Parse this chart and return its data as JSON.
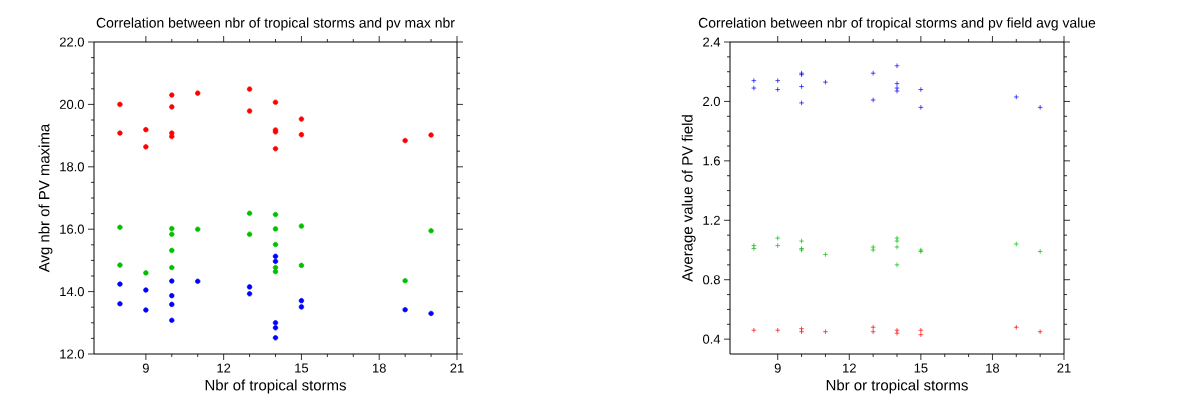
{
  "chart_data": [
    {
      "type": "scatter",
      "title": "Correlation between nbr of tropical storms and pv max nbr",
      "xlabel": "Nbr of tropical storms",
      "ylabel": "Avg nbr of PV maxima",
      "xlim": [
        7,
        21
      ],
      "ylim": [
        12,
        22
      ],
      "xticks": [
        9,
        12,
        15,
        18,
        21
      ],
      "yticks": [
        {
          "value": 12,
          "label": "12.0"
        },
        {
          "value": 14,
          "label": "14.0"
        },
        {
          "value": 16,
          "label": "16.0"
        },
        {
          "value": 18,
          "label": "18.0"
        },
        {
          "value": 20,
          "label": "20.0"
        },
        {
          "value": 22,
          "label": "22.0"
        }
      ],
      "marker": "circle",
      "series": [
        {
          "color": "#ff0000",
          "x": [
            8,
            8,
            9,
            9,
            10,
            10,
            10,
            10,
            11,
            13,
            13,
            14,
            14,
            14,
            14,
            15,
            15,
            19,
            20
          ],
          "values": [
            20.0,
            19.08,
            19.19,
            18.64,
            20.3,
            19.92,
            19.08,
            18.97,
            20.36,
            20.49,
            19.79,
            20.07,
            19.18,
            19.12,
            18.58,
            19.53,
            19.03,
            18.84,
            19.02
          ]
        },
        {
          "color": "#00c000",
          "x": [
            8,
            8,
            9,
            10,
            10,
            10,
            10,
            11,
            13,
            13,
            14,
            14,
            14,
            14,
            14,
            15,
            15,
            19,
            20
          ],
          "values": [
            16.06,
            14.85,
            14.6,
            16.02,
            15.84,
            15.32,
            14.77,
            16.0,
            16.51,
            15.84,
            16.47,
            16.01,
            15.51,
            14.77,
            14.64,
            16.1,
            14.84,
            14.35,
            15.95
          ]
        },
        {
          "color": "#0000ff",
          "x": [
            8,
            8,
            9,
            9,
            10,
            10,
            10,
            10,
            11,
            13,
            13,
            14,
            14,
            14,
            14,
            14,
            15,
            15,
            19,
            20
          ],
          "values": [
            14.24,
            13.61,
            14.05,
            13.41,
            14.34,
            13.87,
            13.59,
            13.08,
            14.33,
            14.15,
            13.93,
            15.13,
            14.97,
            13.0,
            12.84,
            12.52,
            13.71,
            13.51,
            13.42,
            13.3
          ]
        }
      ]
    },
    {
      "type": "scatter",
      "title": "Correlation between nbr of tropical storms and pv field avg value",
      "xlabel": "Nbr or tropical storms",
      "ylabel": "Average value of PV field",
      "xlim": [
        7,
        21
      ],
      "ylim": [
        0.3,
        2.4
      ],
      "xticks": [
        9,
        12,
        15,
        18,
        21
      ],
      "yticks": [
        {
          "value": 0.4,
          "label": "0.4"
        },
        {
          "value": 0.8,
          "label": "0.8"
        },
        {
          "value": 1.2,
          "label": "1.2"
        },
        {
          "value": 1.6,
          "label": "1.6"
        },
        {
          "value": 2,
          "label": "2.0"
        },
        {
          "value": 2.4,
          "label": "2.4"
        }
      ],
      "marker": "cross",
      "series": [
        {
          "color": "#0000ff",
          "x": [
            8,
            8,
            9,
            9,
            10,
            10,
            10,
            10,
            11,
            13,
            13,
            14,
            14,
            14,
            14,
            15,
            15,
            19,
            20
          ],
          "values": [
            2.14,
            2.09,
            2.14,
            2.08,
            2.19,
            2.18,
            2.1,
            1.99,
            2.13,
            2.19,
            2.01,
            2.24,
            2.12,
            2.09,
            2.07,
            2.08,
            1.96,
            2.03,
            1.96
          ]
        },
        {
          "color": "#00c000",
          "x": [
            8,
            8,
            9,
            9,
            10,
            10,
            10,
            11,
            13,
            13,
            14,
            14,
            14,
            14,
            15,
            15,
            19,
            20
          ],
          "values": [
            1.03,
            1.01,
            1.08,
            1.03,
            1.06,
            1.01,
            1.0,
            0.97,
            1.02,
            1.0,
            1.08,
            1.06,
            1.02,
            0.9,
            1.0,
            0.99,
            1.04,
            0.99
          ]
        },
        {
          "color": "#ff0000",
          "x": [
            8,
            9,
            10,
            10,
            11,
            13,
            13,
            14,
            14,
            15,
            15,
            19,
            20
          ],
          "values": [
            0.46,
            0.46,
            0.47,
            0.45,
            0.45,
            0.48,
            0.45,
            0.46,
            0.44,
            0.46,
            0.43,
            0.48,
            0.45
          ]
        }
      ]
    }
  ]
}
